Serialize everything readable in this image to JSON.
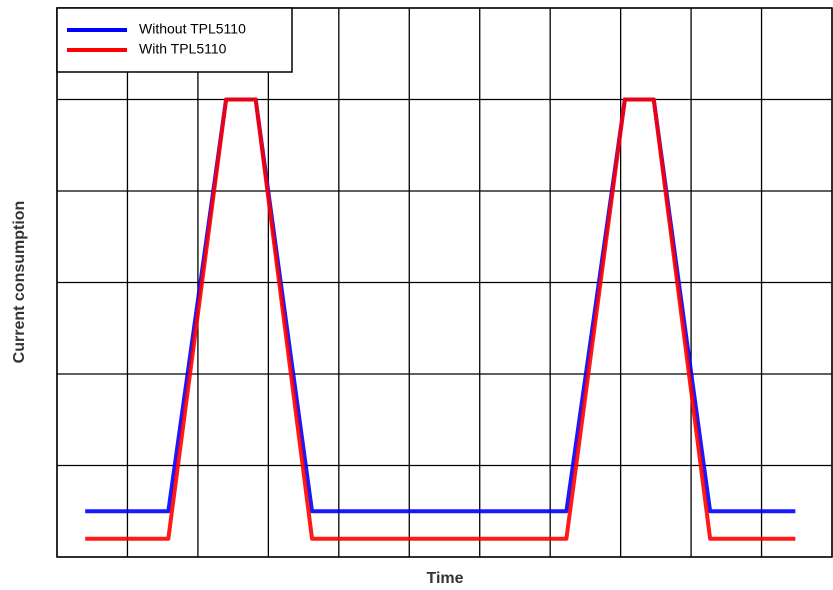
{
  "chart_data": {
    "type": "line",
    "xlabel": "Time",
    "ylabel": "Current consumption",
    "x": [
      0.4,
      1.58,
      2.4,
      2.82,
      3.62,
      7.23,
      8.06,
      8.47,
      9.27,
      10.48
    ],
    "series": [
      {
        "name": "Without TPL5110",
        "color": "#0000ff",
        "values": [
          0.5,
          0.5,
          5,
          5,
          0.5,
          0.5,
          5,
          5,
          0.5,
          0.5
        ]
      },
      {
        "name": "With TPL5110",
        "color": "#ff0000",
        "values": [
          0.2,
          0.2,
          5,
          5,
          0.2,
          0.2,
          5,
          5,
          0.2,
          0.2
        ]
      }
    ],
    "xlim": [
      0,
      11
    ],
    "ylim": [
      0,
      6
    ],
    "xticks": [
      0,
      1,
      2,
      3,
      4,
      5,
      6,
      7,
      8,
      9,
      10,
      11
    ],
    "yticks": [
      0,
      1,
      2,
      3,
      4,
      5,
      6
    ],
    "grid": true,
    "legend": "top-left"
  }
}
